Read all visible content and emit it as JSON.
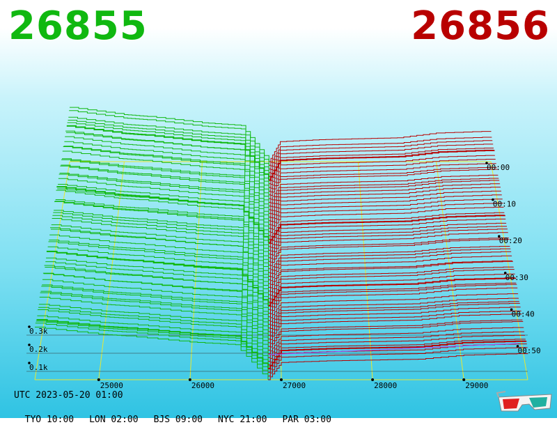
{
  "header": {
    "bid_price": "26855",
    "ask_price": "26856"
  },
  "clock": {
    "utc": "UTC 2023-05-20 01:00",
    "cities": [
      "TYO 10:00",
      "LON 02:00",
      "BJS 09:00",
      "NYC 21:00",
      "PAR 03:00"
    ]
  },
  "colors": {
    "bid": "#10b810",
    "ask": "#b80000",
    "grid": "#e8e830",
    "floor": "#a050ff"
  },
  "icons": {
    "glasses": "3d-glasses-icon"
  },
  "chart_data": {
    "type": "area",
    "x_ticks": [
      "25000",
      "26000",
      "27000",
      "28000",
      "29000"
    ],
    "x_tick_values": [
      25000,
      26000,
      27000,
      28000,
      29000
    ],
    "time_ticks": [
      "00:00",
      "00:10",
      "00:20",
      "00:30",
      "00:40",
      "00:50"
    ],
    "z_ticks": [
      "0.1k",
      "0.2k",
      "0.3k"
    ],
    "z_tick_values": [
      100,
      200,
      300
    ],
    "xlim": [
      24300,
      29700
    ],
    "timelim": [
      0,
      60
    ],
    "series": [
      {
        "side": "bid",
        "color": "#10b810",
        "x": [
          24300,
          25000,
          25300,
          26000,
          26500,
          26855
        ],
        "depth": [
          300,
          260,
          250,
          215,
          200,
          0
        ]
      },
      {
        "side": "ask",
        "color": "#b80000",
        "x": [
          26856,
          27000,
          27500,
          28000,
          28500,
          29000,
          29700
        ],
        "depth": [
          0,
          105,
          115,
          120,
          125,
          150,
          160
        ]
      }
    ]
  }
}
